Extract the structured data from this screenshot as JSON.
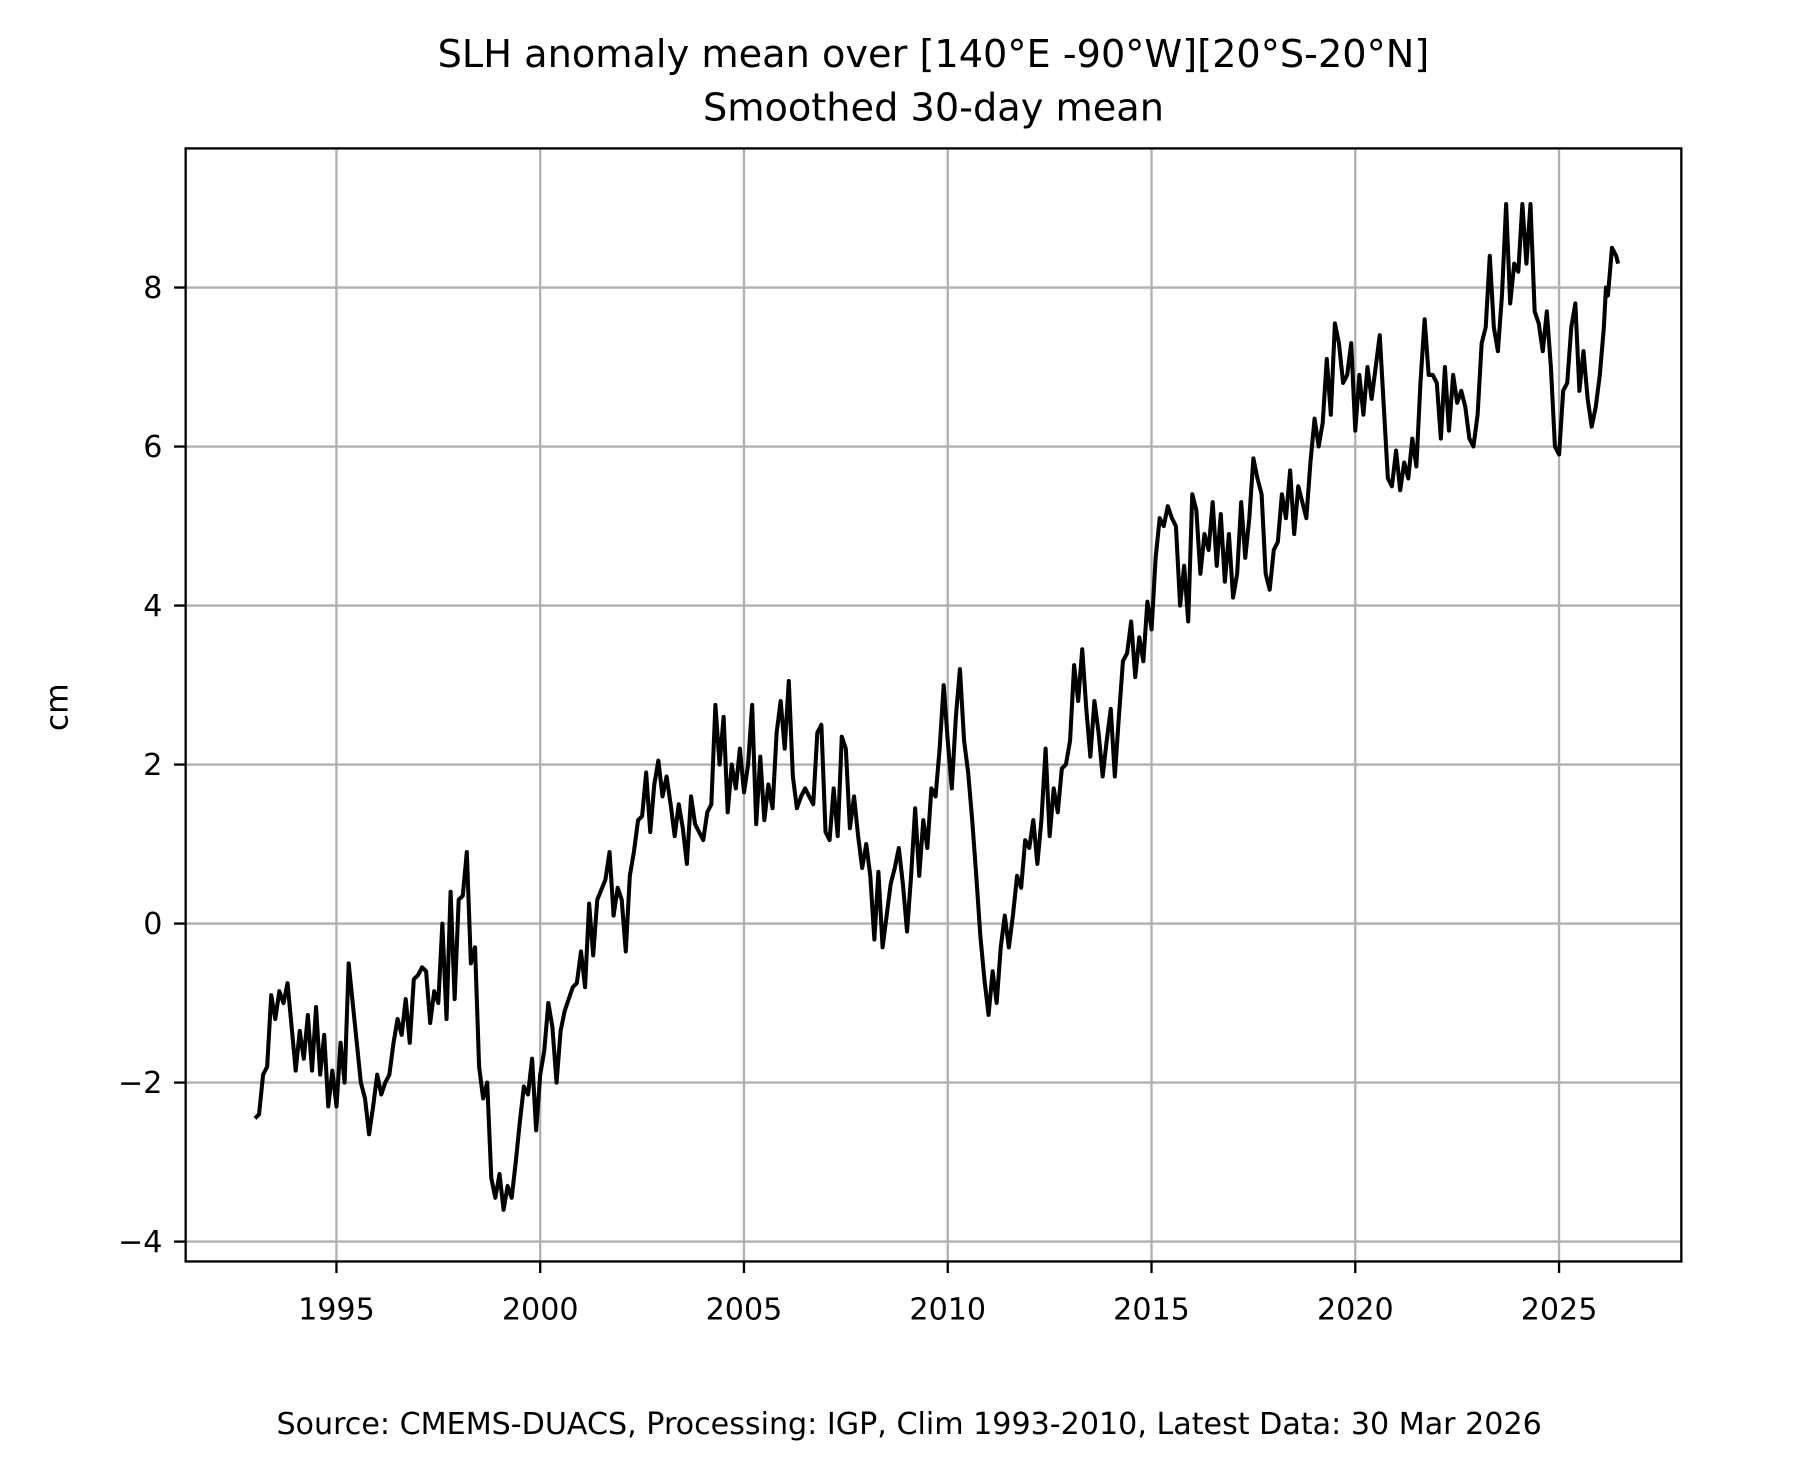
{
  "chart_data": {
    "type": "line",
    "title": "SLH anomaly mean over [140°E -90°W][20°S-20°N]",
    "subtitle": "Smoothed 30-day mean",
    "xlabel": "",
    "ylabel": "cm",
    "footer": "Source: CMEMS-DUACS, Processing: IGP, Clim 1993-2010, Latest Data: 30 Mar 2026",
    "xlim": [
      1991.3,
      2028.0
    ],
    "ylim": [
      -4.25,
      9.75
    ],
    "grid": true,
    "xticks": [
      1995,
      2000,
      2005,
      2010,
      2015,
      2020,
      2025
    ],
    "xtick_labels": [
      "1995",
      "2000",
      "2005",
      "2010",
      "2015",
      "2020",
      "2025"
    ],
    "yticks": [
      -4,
      -2,
      0,
      2,
      4,
      6,
      8
    ],
    "ytick_labels": [
      "−4",
      "−2",
      "0",
      "2",
      "4",
      "6",
      "8"
    ],
    "line_color": "#000000",
    "series": [
      {
        "name": "SLH anomaly",
        "x": [
          1993.0,
          1993.1,
          1993.2,
          1993.3,
          1993.4,
          1993.5,
          1993.6,
          1993.7,
          1993.8,
          1993.9,
          1994.0,
          1994.1,
          1994.2,
          1994.3,
          1994.4,
          1994.5,
          1994.6,
          1994.7,
          1994.8,
          1994.9,
          1995.0,
          1995.1,
          1995.2,
          1995.3,
          1995.4,
          1995.5,
          1995.6,
          1995.7,
          1995.8,
          1995.9,
          1996.0,
          1996.1,
          1996.2,
          1996.3,
          1996.4,
          1996.5,
          1996.6,
          1996.7,
          1996.8,
          1996.9,
          1997.0,
          1997.1,
          1997.2,
          1997.3,
          1997.4,
          1997.5,
          1997.6,
          1997.7,
          1997.8,
          1997.9,
          1998.0,
          1998.1,
          1998.2,
          1998.3,
          1998.4,
          1998.5,
          1998.6,
          1998.7,
          1998.8,
          1998.9,
          1999.0,
          1999.1,
          1999.2,
          1999.3,
          1999.4,
          1999.5,
          1999.6,
          1999.7,
          1999.8,
          1999.9,
          2000.0,
          2000.1,
          2000.2,
          2000.3,
          2000.4,
          2000.5,
          2000.6,
          2000.8,
          2000.9,
          2001.0,
          2001.1,
          2001.2,
          2001.3,
          2001.4,
          2001.6,
          2001.7,
          2001.8,
          2001.9,
          2002.0,
          2002.1,
          2002.2,
          2002.3,
          2002.4,
          2002.5,
          2002.6,
          2002.7,
          2002.8,
          2002.9,
          2003.0,
          2003.1,
          2003.2,
          2003.3,
          2003.4,
          2003.5,
          2003.6,
          2003.7,
          2003.8,
          2004.0,
          2004.1,
          2004.2,
          2004.3,
          2004.4,
          2004.5,
          2004.6,
          2004.7,
          2004.8,
          2004.9,
          2005.0,
          2005.1,
          2005.2,
          2005.3,
          2005.4,
          2005.5,
          2005.6,
          2005.7,
          2005.8,
          2005.9,
          2006.0,
          2006.1,
          2006.2,
          2006.3,
          2006.4,
          2006.5,
          2006.6,
          2006.7,
          2006.8,
          2006.9,
          2007.0,
          2007.1,
          2007.2,
          2007.3,
          2007.4,
          2007.5,
          2007.6,
          2007.7,
          2007.8,
          2007.9,
          2008.0,
          2008.1,
          2008.2,
          2008.3,
          2008.4,
          2008.5,
          2008.6,
          2008.7,
          2008.8,
          2008.9,
          2009.0,
          2009.1,
          2009.2,
          2009.3,
          2009.4,
          2009.5,
          2009.6,
          2009.7,
          2009.8,
          2009.9,
          2010.0,
          2010.1,
          2010.2,
          2010.3,
          2010.4,
          2010.5,
          2010.6,
          2010.7,
          2010.8,
          2010.9,
          2011.0,
          2011.1,
          2011.2,
          2011.3,
          2011.4,
          2011.5,
          2011.6,
          2011.7,
          2011.8,
          2011.9,
          2012.0,
          2012.1,
          2012.2,
          2012.3,
          2012.4,
          2012.5,
          2012.6,
          2012.7,
          2012.8,
          2012.9,
          2013.0,
          2013.1,
          2013.2,
          2013.3,
          2013.4,
          2013.5,
          2013.6,
          2013.7,
          2013.8,
          2013.9,
          2014.0,
          2014.1,
          2014.2,
          2014.3,
          2014.4,
          2014.5,
          2014.6,
          2014.7,
          2014.8,
          2014.9,
          2015.0,
          2015.1,
          2015.2,
          2015.3,
          2015.4,
          2015.5,
          2015.6,
          2015.7,
          2015.8,
          2015.9,
          2016.0,
          2016.1,
          2016.2,
          2016.3,
          2016.4,
          2016.5,
          2016.6,
          2016.7,
          2016.8,
          2016.9,
          2017.0,
          2017.1,
          2017.2,
          2017.3,
          2017.4,
          2017.5,
          2017.6,
          2017.7,
          2017.8,
          2017.9,
          2018.0,
          2018.1,
          2018.2,
          2018.3,
          2018.4,
          2018.5,
          2018.6,
          2018.7,
          2018.8,
          2018.9,
          2019.0,
          2019.1,
          2019.2,
          2019.3,
          2019.4,
          2019.5,
          2019.6,
          2019.7,
          2019.8,
          2019.9,
          2020.0,
          2020.1,
          2020.2,
          2020.3,
          2020.4,
          2020.5,
          2020.6,
          2020.7,
          2020.8,
          2020.9,
          2021.0,
          2021.1,
          2021.2,
          2021.3,
          2021.4,
          2021.5,
          2021.6,
          2021.7,
          2021.8,
          2021.9,
          2022.0,
          2022.1,
          2022.2,
          2022.3,
          2022.4,
          2022.5,
          2022.6,
          2022.7,
          2022.8,
          2022.9,
          2023.0,
          2023.1,
          2023.2,
          2023.3,
          2023.4,
          2023.5,
          2023.6,
          2023.7,
          2023.8,
          2023.9,
          2024.0,
          2024.1,
          2024.2,
          2024.3,
          2024.4,
          2024.5,
          2024.6,
          2024.7,
          2024.8,
          2024.9,
          2025.0,
          2025.1,
          2025.2,
          2025.3,
          2025.4,
          2025.5,
          2025.6,
          2025.7,
          2025.8,
          2025.9,
          2026.0,
          2026.1,
          2026.15,
          2026.2,
          2026.3,
          2026.4,
          2026.45
        ],
        "y": [
          -2.45,
          -2.4,
          -1.9,
          -1.8,
          -0.9,
          -1.2,
          -0.85,
          -1.0,
          -0.75,
          -1.3,
          -1.85,
          -1.35,
          -1.7,
          -1.15,
          -1.85,
          -1.05,
          -1.9,
          -1.4,
          -2.3,
          -1.85,
          -2.3,
          -1.5,
          -2.0,
          -0.5,
          -1.0,
          -1.5,
          -2.0,
          -2.2,
          -2.65,
          -2.3,
          -1.9,
          -2.15,
          -2.0,
          -1.9,
          -1.5,
          -1.2,
          -1.4,
          -0.95,
          -1.5,
          -0.7,
          -0.65,
          -0.55,
          -0.6,
          -1.25,
          -0.85,
          -1.0,
          0.0,
          -1.2,
          0.4,
          -0.95,
          0.3,
          0.35,
          0.9,
          -0.5,
          -0.3,
          -1.8,
          -2.2,
          -2.0,
          -3.2,
          -3.45,
          -3.15,
          -3.6,
          -3.3,
          -3.45,
          -3.0,
          -2.5,
          -2.05,
          -2.15,
          -1.7,
          -2.6,
          -1.9,
          -1.6,
          -1.0,
          -1.3,
          -2.0,
          -1.35,
          -1.1,
          -0.8,
          -0.75,
          -0.35,
          -0.8,
          0.25,
          -0.4,
          0.3,
          0.55,
          0.9,
          0.1,
          0.45,
          0.3,
          -0.35,
          0.6,
          0.9,
          1.3,
          1.35,
          1.9,
          1.15,
          1.75,
          2.05,
          1.6,
          1.85,
          1.5,
          1.1,
          1.5,
          1.2,
          0.75,
          1.6,
          1.25,
          1.05,
          1.4,
          1.5,
          2.75,
          2.0,
          2.6,
          1.4,
          2.0,
          1.7,
          2.2,
          1.65,
          2.0,
          2.75,
          1.25,
          2.1,
          1.3,
          1.75,
          1.45,
          2.4,
          2.8,
          2.2,
          3.05,
          1.85,
          1.45,
          1.6,
          1.7,
          1.6,
          1.5,
          2.4,
          2.5,
          1.15,
          1.05,
          1.7,
          1.1,
          2.35,
          2.2,
          1.2,
          1.6,
          1.1,
          0.7,
          1.0,
          0.6,
          -0.2,
          0.65,
          -0.3,
          0.1,
          0.5,
          0.7,
          0.95,
          0.5,
          -0.1,
          0.6,
          1.45,
          0.6,
          1.3,
          0.95,
          1.7,
          1.6,
          2.2,
          3.0,
          2.3,
          1.7,
          2.6,
          3.2,
          2.3,
          1.9,
          1.3,
          0.6,
          -0.15,
          -0.7,
          -1.15,
          -0.6,
          -1.0,
          -0.3,
          0.1,
          -0.3,
          0.1,
          0.6,
          0.45,
          1.05,
          0.95,
          1.3,
          0.75,
          1.3,
          2.2,
          1.1,
          1.7,
          1.4,
          1.95,
          2.0,
          2.3,
          3.25,
          2.8,
          3.45,
          2.7,
          2.1,
          2.8,
          2.4,
          1.85,
          2.3,
          2.7,
          1.85,
          2.6,
          3.3,
          3.4,
          3.8,
          3.1,
          3.6,
          3.3,
          4.05,
          3.7,
          4.6,
          5.1,
          5.0,
          5.25,
          5.1,
          5.0,
          4.0,
          4.5,
          3.8,
          5.4,
          5.2,
          4.4,
          4.9,
          4.7,
          5.3,
          4.5,
          5.15,
          4.3,
          4.9,
          4.1,
          4.4,
          5.3,
          4.6,
          5.1,
          5.85,
          5.6,
          5.4,
          4.4,
          4.2,
          4.7,
          4.8,
          5.4,
          5.1,
          5.7,
          4.9,
          5.5,
          5.3,
          5.1,
          5.8,
          6.35,
          6.0,
          6.3,
          7.1,
          6.4,
          7.55,
          7.3,
          6.8,
          6.9,
          7.3,
          6.2,
          6.9,
          6.4,
          7.0,
          6.6,
          7.0,
          7.4,
          6.5,
          5.6,
          5.5,
          5.95,
          5.45,
          5.8,
          5.6,
          6.1,
          5.75,
          6.8,
          7.6,
          6.9,
          6.9,
          6.8,
          6.1,
          7.0,
          6.2,
          6.9,
          6.55,
          6.7,
          6.5,
          6.1,
          6.0,
          6.4,
          7.3,
          7.5,
          8.4,
          7.5,
          7.2,
          7.9,
          9.05,
          7.8,
          8.3,
          8.2,
          9.05,
          8.3,
          9.05,
          7.7,
          7.55,
          7.2,
          7.7,
          7.0,
          6.0,
          5.9,
          6.7,
          6.8,
          7.5,
          7.8,
          6.7,
          7.2,
          6.6,
          6.25,
          6.5,
          6.9,
          7.5,
          8.0,
          7.9,
          8.5,
          8.4,
          8.3
        ]
      }
    ]
  }
}
